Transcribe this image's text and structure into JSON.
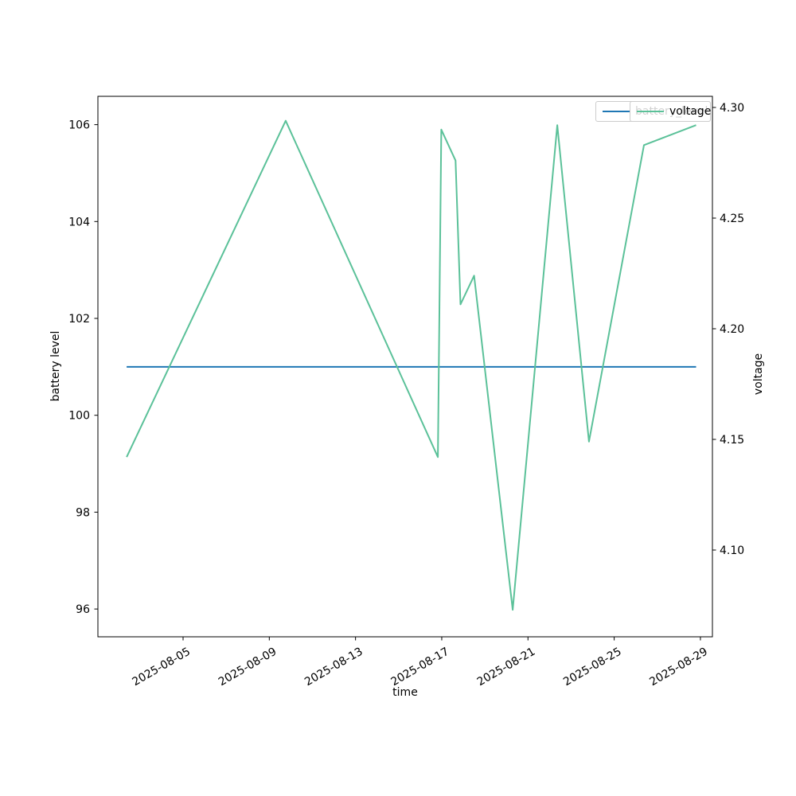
{
  "chart_data": {
    "type": "line",
    "title": "",
    "xlabel": "time",
    "ylabel_left": "battery level",
    "ylabel_right": "voltage",
    "grid": false,
    "x_axis": {
      "unit": "day of August 2025",
      "tick_values": [
        5,
        9,
        13,
        17,
        21,
        25,
        29
      ],
      "tick_labels": [
        "2025-08-05",
        "2025-08-09",
        "2025-08-13",
        "2025-08-17",
        "2025-08-21",
        "2025-08-25",
        "2025-08-29"
      ],
      "lim": [
        1.1,
        29.6
      ]
    },
    "y_left": {
      "tick_values": [
        96,
        98,
        100,
        102,
        104,
        106
      ],
      "tick_labels": [
        "96",
        "98",
        "100",
        "102",
        "104",
        "106"
      ],
      "lim": [
        95.4,
        106.6
      ]
    },
    "y_right": {
      "tick_values": [
        4.1,
        4.15,
        4.2,
        4.25,
        4.3
      ],
      "tick_labels": [
        "4.10",
        "4.15",
        "4.20",
        "4.25",
        "4.30"
      ],
      "lim": [
        4.061,
        4.306
      ]
    },
    "series": [
      {
        "name": "battery_level",
        "axis": "left",
        "color": "#1f77b4",
        "x": [
          2.38,
          28.8
        ],
        "y": [
          101,
          101
        ],
        "x_dates": [
          "2025-08-02 09:00",
          "2025-08-28 19:00"
        ]
      },
      {
        "name": "voltage",
        "axis": "right",
        "color": "#5bc199",
        "x": [
          2.38,
          9.76,
          16.82,
          16.98,
          17.64,
          17.87,
          18.5,
          20.29,
          22.36,
          23.83,
          26.38,
          28.8
        ],
        "y": [
          4.142,
          4.294,
          4.142,
          4.29,
          4.276,
          4.211,
          4.224,
          4.073,
          4.292,
          4.149,
          4.283,
          4.292
        ],
        "x_dates": [
          "2025-08-02 09:00",
          "2025-08-09 18:00",
          "2025-08-16 20:00",
          "2025-08-17 00:00",
          "2025-08-17 15:00",
          "2025-08-17 21:00",
          "2025-08-18 12:00",
          "2025-08-20 07:00",
          "2025-08-22 09:00",
          "2025-08-23 20:00",
          "2025-08-26 09:00",
          "2025-08-28 19:00"
        ]
      }
    ],
    "legend": {
      "position": "upper right",
      "entries": [
        {
          "label": "battery_level",
          "color": "#1f77b4"
        },
        {
          "label": "voltage",
          "color": "#5bc199"
        }
      ]
    }
  }
}
